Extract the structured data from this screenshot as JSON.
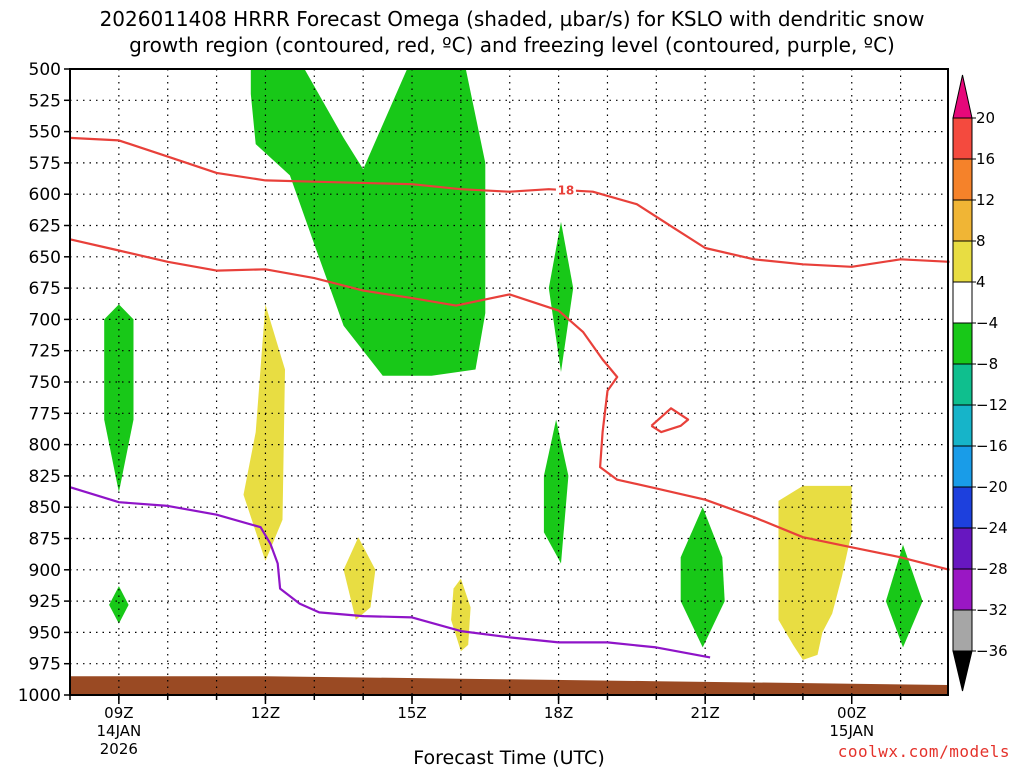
{
  "chart_data": {
    "type": "heatmap",
    "title_line1": "2026011408 HRRR Forecast Omega (shaded, µbar/s) for KSLO with dendritic snow",
    "title_line2": "growth region (contoured, red, ºC) and freezing level (contoured, purple, ºC)",
    "xlabel": "Forecast Time (UTC)",
    "credit": "coolwx.com/models",
    "x_axis": {
      "hour_range": [
        8.0,
        25.97
      ],
      "ticks": [
        {
          "hour": 9,
          "label": "09Z",
          "sub1": "14JAN",
          "sub2": "2026"
        },
        {
          "hour": 12,
          "label": "12Z",
          "sub1": "",
          "sub2": ""
        },
        {
          "hour": 15,
          "label": "15Z",
          "sub1": "",
          "sub2": ""
        },
        {
          "hour": 18,
          "label": "18Z",
          "sub1": "",
          "sub2": ""
        },
        {
          "hour": 21,
          "label": "21Z",
          "sub1": "",
          "sub2": ""
        },
        {
          "hour": 24,
          "label": "00Z",
          "sub1": "15JAN",
          "sub2": ""
        }
      ]
    },
    "y_axis": {
      "range_mb": [
        500,
        1000
      ],
      "ticks": [
        500,
        525,
        550,
        575,
        600,
        625,
        650,
        675,
        700,
        725,
        750,
        775,
        800,
        825,
        850,
        875,
        900,
        925,
        950,
        975,
        1000
      ]
    },
    "grid": true,
    "colorbar": {
      "labels": [
        "20",
        "16",
        "12",
        "8",
        "4",
        "−4",
        "−8",
        "−12",
        "−16",
        "−20",
        "−24",
        "−28",
        "−32",
        "−36"
      ],
      "colors": [
        "#f44a3e",
        "#f5822a",
        "#f0b535",
        "#e8dd42",
        "#ffffff",
        "#18c818",
        "#0fbf8e",
        "#16b4c9",
        "#199ce8",
        "#1d40dd",
        "#6717c0",
        "#9a17c4",
        "#a6a6a6"
      ],
      "top_cap": "#e6087a",
      "bottom_cap": "#000000"
    },
    "omega_regions": [
      {
        "level": "-4 to -8",
        "color": "#18c818",
        "points": [
          [
            11.7,
            500
          ],
          [
            12.8,
            500
          ],
          [
            13.6,
            555
          ],
          [
            14.0,
            580
          ],
          [
            14.9,
            500
          ],
          [
            16.1,
            500
          ],
          [
            16.5,
            575
          ],
          [
            16.5,
            695
          ],
          [
            16.3,
            740
          ],
          [
            15.4,
            745
          ],
          [
            14.4,
            745
          ],
          [
            13.6,
            705
          ],
          [
            13.0,
            640
          ],
          [
            12.5,
            585
          ],
          [
            11.8,
            560
          ],
          [
            11.7,
            520
          ]
        ]
      },
      {
        "level": "-4 to -8",
        "color": "#18c818",
        "points": [
          [
            9.0,
            688
          ],
          [
            9.3,
            700
          ],
          [
            9.3,
            780
          ],
          [
            9.0,
            838
          ],
          [
            8.7,
            780
          ],
          [
            8.7,
            700
          ]
        ]
      },
      {
        "level": "-4 to -8",
        "color": "#18c818",
        "points": [
          [
            9.0,
            913
          ],
          [
            9.2,
            928
          ],
          [
            9.0,
            943
          ],
          [
            8.8,
            928
          ]
        ]
      },
      {
        "level": "-4 to -8",
        "color": "#18c818",
        "points": [
          [
            18.05,
            622
          ],
          [
            18.3,
            675
          ],
          [
            18.05,
            742
          ],
          [
            17.8,
            675
          ]
        ]
      },
      {
        "level": "-4 to -8",
        "color": "#18c818",
        "points": [
          [
            17.95,
            780
          ],
          [
            18.2,
            825
          ],
          [
            18.05,
            895
          ],
          [
            17.7,
            870
          ],
          [
            17.7,
            825
          ]
        ]
      },
      {
        "level": "-4 to -8",
        "color": "#18c818",
        "points": [
          [
            20.95,
            850
          ],
          [
            21.35,
            890
          ],
          [
            21.4,
            925
          ],
          [
            20.95,
            962
          ],
          [
            20.5,
            925
          ],
          [
            20.5,
            890
          ]
        ]
      },
      {
        "level": "-4 to -8",
        "color": "#18c818",
        "points": [
          [
            25.05,
            880
          ],
          [
            25.45,
            925
          ],
          [
            25.05,
            962
          ],
          [
            24.7,
            925
          ]
        ]
      },
      {
        "level": "4 to 8",
        "color": "#e8dd42",
        "points": [
          [
            12.0,
            688
          ],
          [
            12.4,
            740
          ],
          [
            12.35,
            860
          ],
          [
            12.0,
            893
          ],
          [
            11.55,
            840
          ],
          [
            11.8,
            790
          ]
        ]
      },
      {
        "level": "4 to 8",
        "color": "#e8dd42",
        "points": [
          [
            13.9,
            874
          ],
          [
            14.25,
            900
          ],
          [
            14.15,
            930
          ],
          [
            13.85,
            940
          ],
          [
            13.6,
            900
          ]
        ]
      },
      {
        "level": "4 to 8",
        "color": "#e8dd42",
        "points": [
          [
            16.0,
            907
          ],
          [
            16.2,
            930
          ],
          [
            16.15,
            960
          ],
          [
            16.0,
            965
          ],
          [
            15.8,
            940
          ],
          [
            15.85,
            915
          ]
        ]
      },
      {
        "level": "4 to 8",
        "color": "#e8dd42",
        "points": [
          [
            22.5,
            845
          ],
          [
            23.0,
            833
          ],
          [
            24.0,
            833
          ],
          [
            24.0,
            870
          ],
          [
            23.8,
            905
          ],
          [
            23.6,
            935
          ],
          [
            23.4,
            950
          ],
          [
            23.3,
            968
          ],
          [
            23.0,
            972
          ],
          [
            22.8,
            960
          ],
          [
            22.5,
            940
          ]
        ]
      }
    ],
    "dgz_contours": [
      {
        "color": "#e8403a",
        "points": [
          [
            8.0,
            555
          ],
          [
            9.0,
            557
          ],
          [
            10.0,
            570
          ],
          [
            11.0,
            583
          ],
          [
            12.0,
            589
          ],
          [
            13.0,
            590
          ],
          [
            15.0,
            592
          ],
          [
            16.0,
            596
          ],
          [
            17.0,
            598
          ],
          [
            17.8,
            596
          ],
          [
            18.7,
            598
          ],
          [
            19.6,
            608
          ],
          [
            20.4,
            628
          ],
          [
            21.0,
            643
          ],
          [
            22.0,
            652
          ],
          [
            23.0,
            656
          ],
          [
            24.0,
            658
          ],
          [
            25.0,
            652
          ],
          [
            26.0,
            654
          ]
        ]
      },
      {
        "color": "#e8403a",
        "points": [
          [
            8.0,
            636
          ],
          [
            9.0,
            645
          ],
          [
            10.0,
            654
          ],
          [
            11.0,
            661
          ],
          [
            12.0,
            660
          ],
          [
            13.0,
            667
          ],
          [
            14.0,
            677
          ],
          [
            15.0,
            683
          ],
          [
            15.9,
            689
          ],
          [
            17.0,
            680
          ],
          [
            18.0,
            693
          ],
          [
            18.5,
            710
          ],
          [
            18.9,
            732
          ],
          [
            19.2,
            746
          ],
          [
            19.0,
            757
          ],
          [
            18.9,
            790
          ],
          [
            18.85,
            818
          ],
          [
            19.2,
            828
          ],
          [
            20.0,
            835
          ],
          [
            21.0,
            844
          ],
          [
            22.0,
            858
          ],
          [
            23.0,
            874
          ],
          [
            24.0,
            882
          ],
          [
            25.0,
            890
          ],
          [
            26.0,
            900
          ]
        ]
      },
      {
        "color": "#e8403a",
        "points": [
          [
            19.9,
            785
          ],
          [
            20.3,
            771
          ],
          [
            20.65,
            780
          ],
          [
            20.5,
            785
          ],
          [
            20.1,
            790
          ],
          [
            19.9,
            785
          ]
        ]
      }
    ],
    "dgz_label": {
      "text": "18",
      "hour": 18.15,
      "mb": 597
    },
    "freezing_level": {
      "color": "#8f14c8",
      "points": [
        [
          8.0,
          834
        ],
        [
          9.0,
          846
        ],
        [
          10.0,
          849
        ],
        [
          11.0,
          856
        ],
        [
          11.9,
          866
        ],
        [
          12.1,
          879
        ],
        [
          12.25,
          895
        ],
        [
          12.3,
          915
        ],
        [
          12.7,
          927
        ],
        [
          13.1,
          934
        ],
        [
          14.0,
          937
        ],
        [
          15.0,
          938
        ],
        [
          16.0,
          949
        ],
        [
          17.0,
          954
        ],
        [
          18.0,
          958
        ],
        [
          19.0,
          958
        ],
        [
          20.0,
          962
        ],
        [
          21.1,
          970
        ]
      ]
    },
    "terrain": {
      "color": "#9a4a23",
      "points": [
        [
          8.0,
          985
        ],
        [
          12.0,
          985
        ],
        [
          16.0,
          987
        ],
        [
          20.0,
          989
        ],
        [
          24.0,
          991
        ],
        [
          25.97,
          992
        ],
        [
          25.97,
          1000
        ],
        [
          8.0,
          1000
        ]
      ]
    }
  }
}
